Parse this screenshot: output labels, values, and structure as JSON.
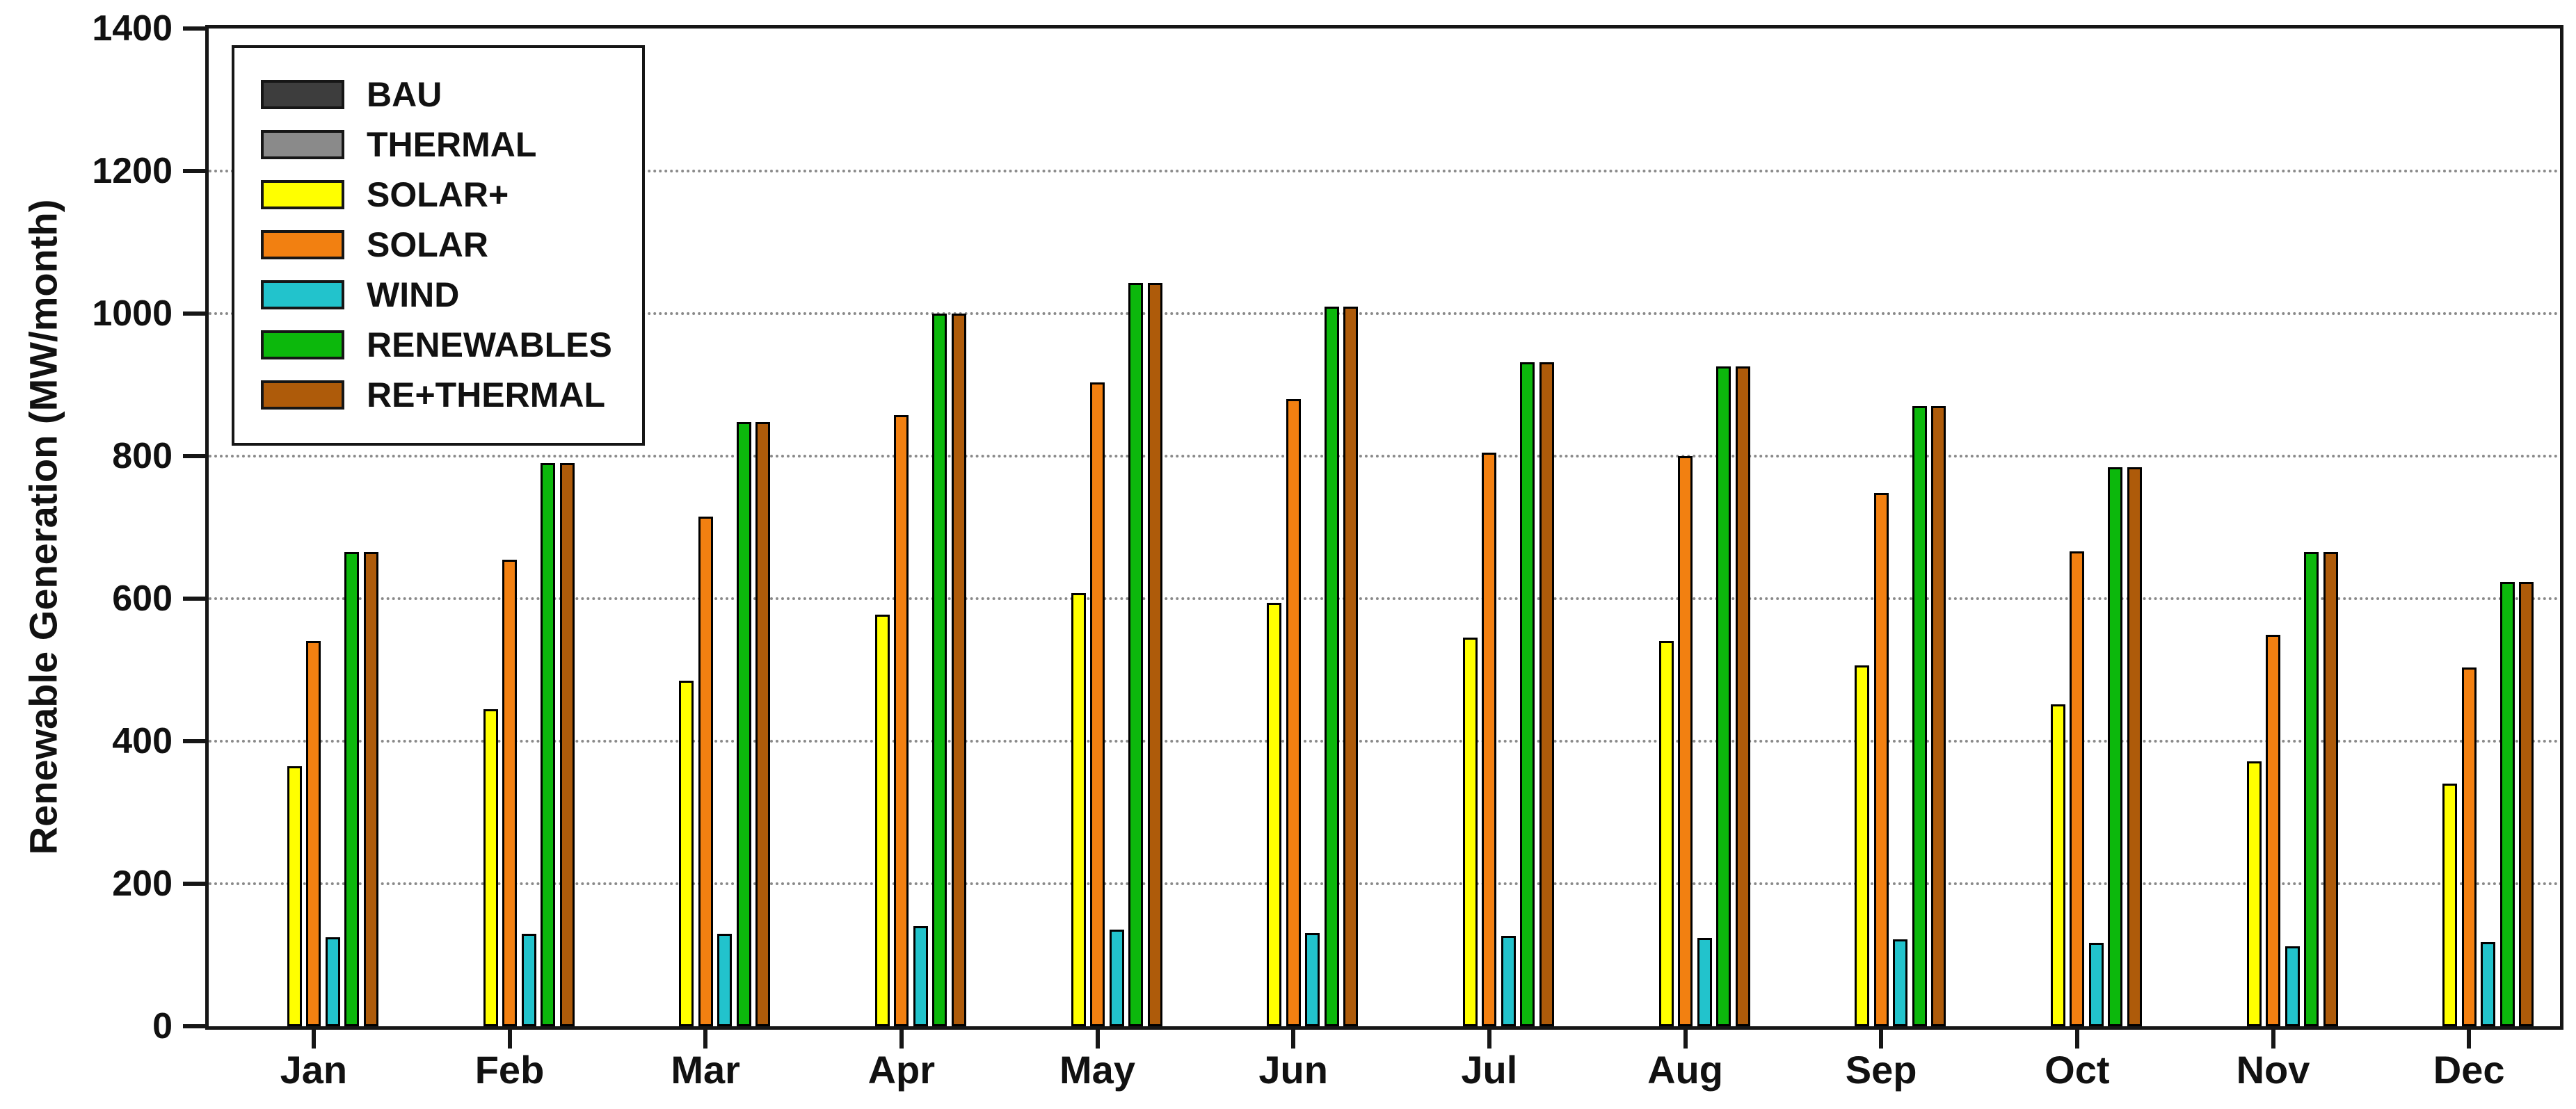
{
  "chart_data": {
    "type": "bar",
    "title": "",
    "xlabel": "",
    "ylabel": "Renewable Generation (MW/month)",
    "ylim": [
      0,
      1400
    ],
    "yticks": [
      0,
      200,
      400,
      600,
      800,
      1000,
      1200,
      1400
    ],
    "grid": "horizontal dotted lines at every 200 MW",
    "legend_position": "top-left inside plot",
    "frame": "full black box around plot area",
    "categories": [
      "Jan",
      "Feb",
      "Mar",
      "Apr",
      "May",
      "Jun",
      "Jul",
      "Aug",
      "Sep",
      "Oct",
      "Nov",
      "Dec"
    ],
    "series": [
      {
        "name": "BAU",
        "color": "#3d3d3d",
        "values": [
          0,
          0,
          0,
          0,
          0,
          0,
          0,
          0,
          0,
          0,
          0,
          0
        ]
      },
      {
        "name": "THERMAL",
        "color": "#8a8a8a",
        "values": [
          0,
          0,
          0,
          0,
          0,
          0,
          0,
          0,
          0,
          0,
          0,
          0
        ]
      },
      {
        "name": "SOLAR+",
        "color": "#ffff00",
        "values": [
          365,
          445,
          485,
          578,
          608,
          594,
          545,
          540,
          506,
          452,
          372,
          340
        ]
      },
      {
        "name": "SOLAR",
        "color": "#f28011",
        "values": [
          540,
          655,
          715,
          858,
          903,
          880,
          805,
          800,
          748,
          666,
          549,
          503
        ]
      },
      {
        "name": "WIND",
        "color": "#22c3cc",
        "values": [
          125,
          130,
          130,
          140,
          136,
          131,
          127,
          124,
          122,
          117,
          112,
          118
        ]
      },
      {
        "name": "RENEWABLES",
        "color": "#0cb80c",
        "values": [
          665,
          790,
          848,
          1000,
          1043,
          1010,
          932,
          926,
          870,
          784,
          665,
          623
        ]
      },
      {
        "name": "RE+THERMAL",
        "color": "#ae5b0a",
        "values": [
          665,
          790,
          848,
          1000,
          1043,
          1010,
          932,
          926,
          870,
          784,
          665,
          623
        ]
      }
    ]
  }
}
